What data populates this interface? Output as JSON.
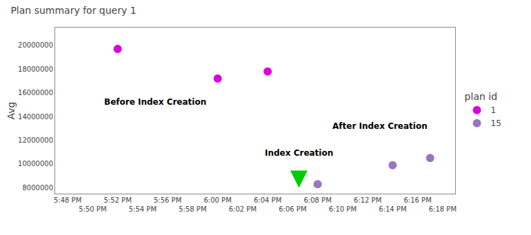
{
  "chart_data": {
    "type": "scatter",
    "title": "Plan summary for query 1",
    "ylabel": "Avg",
    "legend_title": "plan id",
    "legend": "right",
    "grid": false,
    "series": [
      {
        "name": "1",
        "color": "#dd00dd",
        "x": [
          4,
          12,
          16
        ],
        "values": [
          19700000,
          17200000,
          17800000
        ]
      },
      {
        "name": "15",
        "color": "#9977bb",
        "x": [
          20,
          26,
          29
        ],
        "values": [
          8300000,
          9900000,
          10500000
        ]
      }
    ],
    "xlim": [
      -1,
      31
    ],
    "xticks": [
      {
        "value": 0,
        "label": "5:48 PM"
      },
      {
        "value": 2,
        "label": "5:50 PM"
      },
      {
        "value": 4,
        "label": "5:52 PM"
      },
      {
        "value": 6,
        "label": "5:54 PM"
      },
      {
        "value": 8,
        "label": "5:56 PM"
      },
      {
        "value": 10,
        "label": "5:58 PM"
      },
      {
        "value": 12,
        "label": "6:00 PM"
      },
      {
        "value": 14,
        "label": "6:02 PM"
      },
      {
        "value": 16,
        "label": "6:04 PM"
      },
      {
        "value": 18,
        "label": "6:06 PM"
      },
      {
        "value": 20,
        "label": "6:08 PM"
      },
      {
        "value": 22,
        "label": "6:10 PM"
      },
      {
        "value": 24,
        "label": "6:12 PM"
      },
      {
        "value": 26,
        "label": "6:14 PM"
      },
      {
        "value": 28,
        "label": "6:16 PM"
      },
      {
        "value": 30,
        "label": "6:18 PM"
      }
    ],
    "ylim": [
      7500000,
      21500000
    ],
    "yticks": [
      8000000,
      10000000,
      12000000,
      14000000,
      16000000,
      18000000,
      20000000
    ],
    "annotations": [
      {
        "text": "Before Index Creation",
        "x": 7,
        "y": 15200000
      },
      {
        "text": "After Index Creation",
        "x": 25,
        "y": 13200000
      },
      {
        "text": "Index Creation",
        "x": 18.5,
        "y": 10400000
      }
    ],
    "arrow": {
      "x": 18.5,
      "y_start": 9500000,
      "y_end": 8000000,
      "color": "#00cc00"
    }
  }
}
